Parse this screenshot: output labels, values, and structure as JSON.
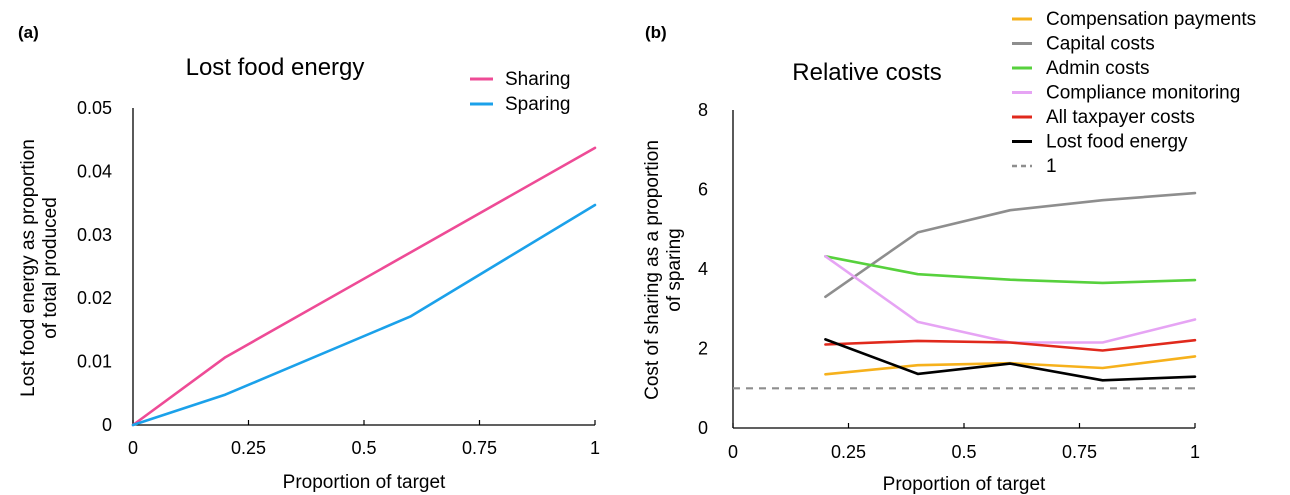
{
  "chart_data": [
    {
      "panel_label": "(a)",
      "type": "line",
      "title": "Lost food energy",
      "xlabel": "Proportion of target",
      "ylabel_lines": [
        "Lost food energy as proportion",
        "of total produced"
      ],
      "xlim": [
        0,
        1
      ],
      "ylim": [
        0,
        0.05
      ],
      "x_ticks": [
        0,
        0.25,
        0.5,
        0.75,
        1
      ],
      "x_tick_labels": [
        "0",
        "0.25",
        "0.5",
        "0.75",
        "1"
      ],
      "y_ticks": [
        0,
        0.01,
        0.02,
        0.03,
        0.04,
        0.05
      ],
      "y_tick_labels": [
        "0",
        "0.01",
        "0.02",
        "0.03",
        "0.04",
        "0.05"
      ],
      "grid": false,
      "legend_position": "top-right",
      "series": [
        {
          "name": "Sharing",
          "color": "#ee4b96",
          "x": [
            0,
            0.2,
            0.6,
            1
          ],
          "y": [
            0,
            0.0107,
            0.0272,
            0.0437
          ]
        },
        {
          "name": "Sparing",
          "color": "#1ba1ea",
          "x": [
            0,
            0.2,
            0.6,
            1
          ],
          "y": [
            0,
            0.0048,
            0.0171,
            0.0347
          ]
        }
      ]
    },
    {
      "panel_label": "(b)",
      "type": "line",
      "title": "Relative costs",
      "xlabel": "Proportion of target",
      "ylabel_lines": [
        "Cost of sharing as a proportion",
        "of sparing"
      ],
      "xlim": [
        0,
        1
      ],
      "ylim": [
        0,
        8
      ],
      "x_ticks": [
        0,
        0.25,
        0.5,
        0.75,
        1
      ],
      "x_tick_labels": [
        "0",
        "0.25",
        "0.5",
        "0.75",
        "1"
      ],
      "y_ticks": [
        0,
        2,
        4,
        6,
        8
      ],
      "y_tick_labels": [
        "0",
        "2",
        "4",
        "6",
        "8"
      ],
      "grid": false,
      "legend_position": "top-right",
      "series": [
        {
          "name": "Compensation payments",
          "color": "#f6b11c",
          "x": [
            0.2,
            0.4,
            0.6,
            0.8,
            1
          ],
          "y": [
            1.35,
            1.58,
            1.63,
            1.51,
            1.8
          ]
        },
        {
          "name": "Capital costs",
          "color": "#8e8e8e",
          "x": [
            0.2,
            0.4,
            0.6,
            0.8,
            1
          ],
          "y": [
            3.3,
            4.92,
            5.48,
            5.73,
            5.91
          ]
        },
        {
          "name": "Admin costs",
          "color": "#57d13d",
          "x": [
            0.2,
            0.4,
            0.6,
            0.8,
            1
          ],
          "y": [
            4.32,
            3.87,
            3.73,
            3.65,
            3.72
          ]
        },
        {
          "name": "Compliance monitoring",
          "color": "#e6a4f4",
          "x": [
            0.2,
            0.4,
            0.6,
            0.8,
            1
          ],
          "y": [
            4.32,
            2.67,
            2.15,
            2.15,
            2.73
          ]
        },
        {
          "name": "All taxpayer costs",
          "color": "#e0291c",
          "x": [
            0.2,
            0.4,
            0.6,
            0.8,
            1
          ],
          "y": [
            2.1,
            2.19,
            2.15,
            1.95,
            2.21
          ]
        },
        {
          "name": "Lost food energy",
          "color": "#000000",
          "x": [
            0.2,
            0.4,
            0.6,
            0.8,
            1
          ],
          "y": [
            2.23,
            1.36,
            1.62,
            1.2,
            1.29
          ]
        },
        {
          "name": "1",
          "color": "#8e8e8e",
          "dashed": true,
          "x": [
            0,
            1
          ],
          "y": [
            1,
            1
          ]
        }
      ]
    }
  ]
}
